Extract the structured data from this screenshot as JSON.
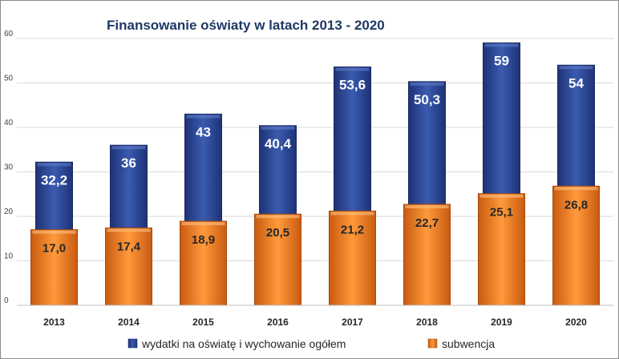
{
  "chart_data": {
    "type": "bar",
    "title": "Finansowanie  oświaty  w latach  2013 - 2020",
    "categories": [
      "2013",
      "2014",
      "2015",
      "2016",
      "2017",
      "2018",
      "2019",
      "2020"
    ],
    "series": [
      {
        "name": "wydatki na oświatę i wychowanie ogółem",
        "values": [
          32.2,
          36,
          43,
          40.4,
          53.6,
          50.3,
          59,
          54
        ],
        "labels": [
          "32,2",
          "36",
          "43",
          "40,4",
          "53,6",
          "50,3",
          "59",
          "54"
        ],
        "color": "#2e4a9a"
      },
      {
        "name": "subwencja",
        "values": [
          17.0,
          17.4,
          18.9,
          20.5,
          21.2,
          22.7,
          25.1,
          26.8
        ],
        "labels": [
          "17,0",
          "17,4",
          "18,9",
          "20,5",
          "21,2",
          "22,7",
          "25,1",
          "26,8"
        ],
        "color": "#f07a1f"
      }
    ],
    "yticks": [
      "0",
      "10",
      "20",
      "30",
      "40",
      "50",
      "60"
    ],
    "ylim": [
      0,
      60
    ],
    "grid": true,
    "legend_position": "bottom"
  }
}
